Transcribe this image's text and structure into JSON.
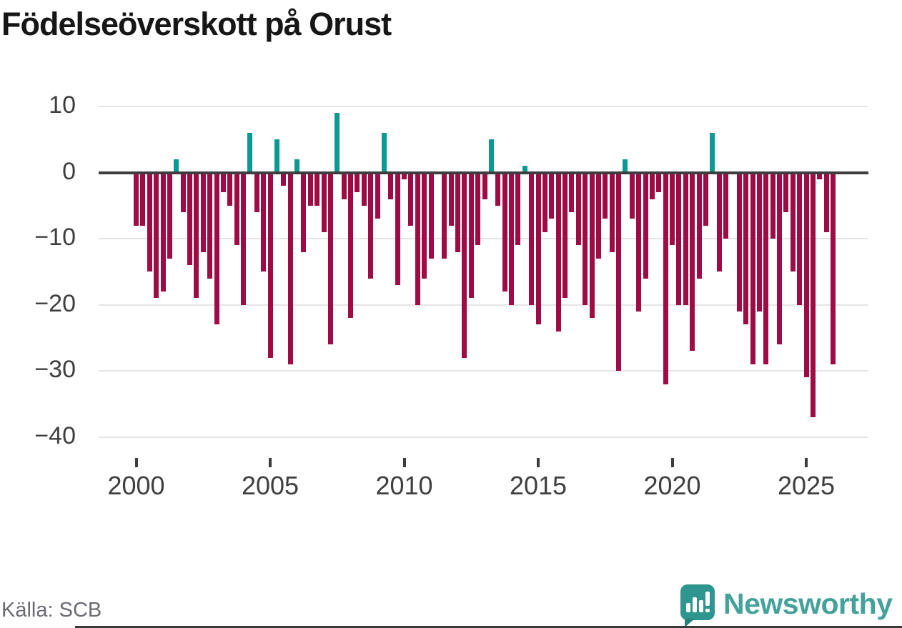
{
  "title": "Födelseöverskott på Orust",
  "source": "Källa: SCB",
  "logo": {
    "text": "Newsworthy"
  },
  "colors": {
    "negative_bar": "#9f0c45",
    "positive_bar": "#0a9a92",
    "zero_axis": "#3d3d3d",
    "gridline": "#e4e4e4",
    "tick_label": "#3f3f3f",
    "title_text": "#161616",
    "source_text": "#6b6b74",
    "logo_teal": "#45a29b"
  },
  "chart_data": {
    "type": "bar",
    "title": "Födelseöverskott på Orust",
    "x_unit": "quarter",
    "start": "2000 Q1",
    "end": "2026 Q1",
    "ylim": [
      -40,
      10
    ],
    "grid": "horizontal",
    "legend": "none",
    "yticks": [
      {
        "value": 10,
        "label": "10"
      },
      {
        "value": 0,
        "label": "0"
      },
      {
        "value": -10,
        "label": "−10"
      },
      {
        "value": -20,
        "label": "−20"
      },
      {
        "value": -30,
        "label": "−30"
      },
      {
        "value": -40,
        "label": "−40"
      }
    ],
    "xticks": [
      {
        "year": 2000,
        "label": "2000"
      },
      {
        "year": 2005,
        "label": "2005"
      },
      {
        "year": 2010,
        "label": "2010"
      },
      {
        "year": 2015,
        "label": "2015"
      },
      {
        "year": 2020,
        "label": "2020"
      },
      {
        "year": 2025,
        "label": "2025"
      }
    ],
    "values_by_year": [
      {
        "year": 2000,
        "q": [
          -8,
          -8,
          -15,
          -19
        ]
      },
      {
        "year": 2001,
        "q": [
          -18,
          -13,
          2,
          -6
        ]
      },
      {
        "year": 2002,
        "q": [
          -14,
          -19,
          -12,
          -16
        ]
      },
      {
        "year": 2003,
        "q": [
          -23,
          -3,
          -5,
          -11
        ]
      },
      {
        "year": 2004,
        "q": [
          -20,
          6,
          -6,
          -15
        ]
      },
      {
        "year": 2005,
        "q": [
          -28,
          5,
          -2,
          -29
        ]
      },
      {
        "year": 2006,
        "q": [
          2,
          -12,
          -5,
          -5
        ]
      },
      {
        "year": 2007,
        "q": [
          -9,
          -26,
          9,
          -4
        ]
      },
      {
        "year": 2008,
        "q": [
          -22,
          -3,
          -5,
          -16
        ]
      },
      {
        "year": 2009,
        "q": [
          -7,
          6,
          -4,
          -17
        ]
      },
      {
        "year": 2010,
        "q": [
          -1,
          -8,
          -20,
          -16
        ]
      },
      {
        "year": 2011,
        "q": [
          -13,
          0,
          -13,
          -8
        ]
      },
      {
        "year": 2012,
        "q": [
          -12,
          -28,
          -19,
          -11
        ]
      },
      {
        "year": 2013,
        "q": [
          -4,
          5,
          -5,
          -18
        ]
      },
      {
        "year": 2014,
        "q": [
          -20,
          -11,
          1,
          -20
        ]
      },
      {
        "year": 2015,
        "q": [
          -23,
          -9,
          -7,
          -24
        ]
      },
      {
        "year": 2016,
        "q": [
          -19,
          -6,
          -11,
          -20
        ]
      },
      {
        "year": 2017,
        "q": [
          -22,
          -13,
          -7,
          -12
        ]
      },
      {
        "year": 2018,
        "q": [
          -30,
          2,
          -7,
          -21
        ]
      },
      {
        "year": 2019,
        "q": [
          -16,
          -4,
          -3,
          -32
        ]
      },
      {
        "year": 2020,
        "q": [
          -11,
          -20,
          -20,
          -27
        ]
      },
      {
        "year": 2021,
        "q": [
          -16,
          -8,
          6,
          -15
        ]
      },
      {
        "year": 2022,
        "q": [
          -10,
          0,
          -21,
          -23
        ]
      },
      {
        "year": 2023,
        "q": [
          -29,
          -21,
          -29,
          -10
        ]
      },
      {
        "year": 2024,
        "q": [
          -26,
          -6,
          -15,
          -20
        ]
      },
      {
        "year": 2025,
        "q": [
          -31,
          -37,
          -1,
          -9
        ]
      },
      {
        "year": 2026,
        "q": [
          -29
        ]
      }
    ]
  }
}
